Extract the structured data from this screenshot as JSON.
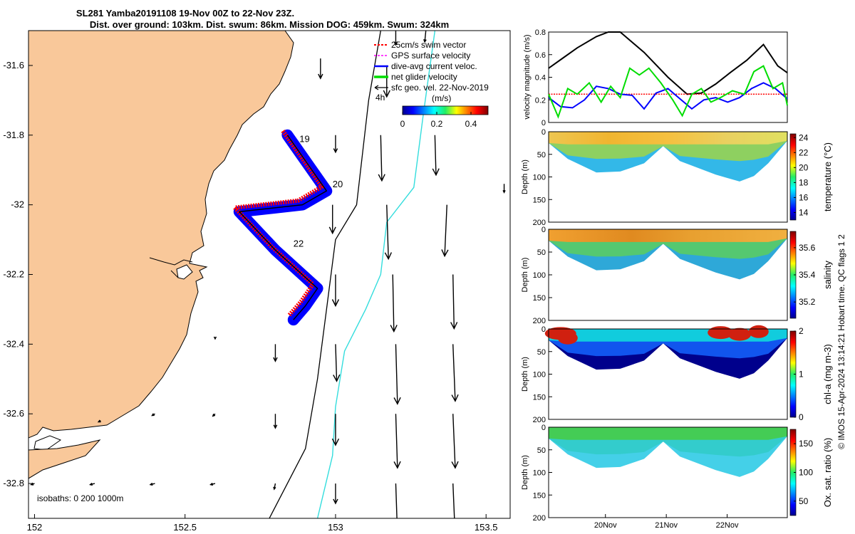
{
  "title": {
    "line1": "SL281 Yamba20191108 19-Nov 00Z to 22-Nov 23Z.",
    "line2": "Dist. over ground: 103km. Dist. swum: 86km. Mission DOG: 459km. Swum: 324km"
  },
  "copyright": "© IMOS 15-Apr-2024 13:14:21 Hobart time. QC flags 1  2",
  "colors": {
    "land": "#f9c89a",
    "swim": "#ff0000",
    "gps": "#ff00ff",
    "dive_avg": "#0000ff",
    "net_glider": "#00dd00",
    "sfc_geo": "#000000",
    "isobath200": "#000000",
    "isobath1000": "#33dddd"
  },
  "chart_data": [
    {
      "type": "map",
      "xlim": [
        151.98,
        153.58
      ],
      "ylim": [
        -32.9,
        -31.5
      ],
      "xticks": [
        "152",
        "152.5",
        "153",
        "153.5"
      ],
      "xtick_values": [
        152,
        152.5,
        153,
        153.5
      ],
      "yticks": [
        "-31.6",
        "-31.8",
        "-32",
        "-32.2",
        "-32.4",
        "-32.6",
        "-32.8"
      ],
      "ytick_values": [
        -31.6,
        -31.8,
        -32.0,
        -32.2,
        -32.4,
        -32.6,
        -32.8
      ],
      "legend": [
        {
          "label": "25cm/s swim vector",
          "color": "#ff0000"
        },
        {
          "label": "GPS surface velocity",
          "color": "#ff00ff"
        },
        {
          "label": "dive-avg current veloc.",
          "color": "#0000ff"
        },
        {
          "label": "net glider velocity",
          "color": "#00dd00"
        },
        {
          "label": "sfc geo. vel. 22-Nov-2019",
          "color": "#000000"
        }
      ],
      "colorbar": {
        "title": "(m/s)",
        "ticks": [
          "0",
          "0.2",
          "0.4"
        ],
        "scale_label": "4h",
        "range": [
          0,
          0.5
        ]
      },
      "isobaths_label": "isobaths: 0   200   1000m",
      "track_labels": [
        {
          "text": "19",
          "lon": 152.88,
          "lat": -31.82
        },
        {
          "text": "20",
          "lon": 152.99,
          "lat": -31.95
        },
        {
          "text": "22",
          "lon": 152.86,
          "lat": -32.12
        }
      ],
      "track": [
        [
          152.84,
          -31.8
        ],
        [
          152.97,
          -31.96
        ],
        [
          152.89,
          -32.0
        ],
        [
          152.68,
          -32.02
        ],
        [
          152.8,
          -32.13
        ],
        [
          152.94,
          -32.24
        ],
        [
          152.9,
          -32.29
        ],
        [
          152.86,
          -32.33
        ]
      ],
      "isobath_200": [
        [
          152.78,
          -32.9
        ],
        [
          152.9,
          -32.7
        ],
        [
          152.94,
          -32.5
        ],
        [
          152.97,
          -32.3
        ],
        [
          153.0,
          -32.1
        ],
        [
          153.07,
          -32.0
        ],
        [
          153.11,
          -31.7
        ],
        [
          153.15,
          -31.5
        ]
      ],
      "isobath_1000": [
        [
          152.94,
          -32.9
        ],
        [
          152.99,
          -32.72
        ],
        [
          153.0,
          -32.58
        ],
        [
          153.03,
          -32.42
        ],
        [
          153.1,
          -32.3
        ],
        [
          153.15,
          -32.2
        ],
        [
          153.17,
          -32.05
        ],
        [
          153.26,
          -31.95
        ],
        [
          153.29,
          -31.75
        ],
        [
          153.33,
          -31.5
        ]
      ],
      "vectors": [
        {
          "lon": 153.2,
          "lat": -31.5,
          "u": 0.0,
          "v": -0.25
        },
        {
          "lon": 153.3,
          "lat": -31.5,
          "u": -0.02,
          "v": -0.2
        },
        {
          "lon": 152.95,
          "lat": -31.58,
          "u": 0.0,
          "v": -0.35
        },
        {
          "lon": 153.17,
          "lat": -31.6,
          "u": 0.0,
          "v": -0.55
        },
        {
          "lon": 153.0,
          "lat": -31.8,
          "u": 0.0,
          "v": -0.3
        },
        {
          "lon": 153.15,
          "lat": -31.8,
          "u": 0.02,
          "v": -0.8
        },
        {
          "lon": 153.33,
          "lat": -31.8,
          "u": 0.02,
          "v": -0.7
        },
        {
          "lon": 153.56,
          "lat": -31.94,
          "u": 0.0,
          "v": -0.15
        },
        {
          "lon": 152.99,
          "lat": -32.0,
          "u": 0.0,
          "v": -0.5
        },
        {
          "lon": 153.17,
          "lat": -32.0,
          "u": 0.03,
          "v": -0.95
        },
        {
          "lon": 153.37,
          "lat": -32.0,
          "u": -0.04,
          "v": -0.9
        },
        {
          "lon": 153.0,
          "lat": -32.2,
          "u": 0.0,
          "v": -0.55
        },
        {
          "lon": 153.19,
          "lat": -32.2,
          "u": 0.02,
          "v": -1.0
        },
        {
          "lon": 153.39,
          "lat": -32.2,
          "u": 0.02,
          "v": -0.95
        },
        {
          "lon": 152.8,
          "lat": -32.4,
          "u": 0.0,
          "v": -0.3
        },
        {
          "lon": 153.0,
          "lat": -32.4,
          "u": 0.02,
          "v": -0.65
        },
        {
          "lon": 153.2,
          "lat": -32.4,
          "u": 0.03,
          "v": -1.05
        },
        {
          "lon": 153.39,
          "lat": -32.4,
          "u": 0.04,
          "v": -1.0
        },
        {
          "lon": 152.8,
          "lat": -32.6,
          "u": 0.0,
          "v": -0.25
        },
        {
          "lon": 153.0,
          "lat": -32.6,
          "u": 0.0,
          "v": -0.55
        },
        {
          "lon": 153.2,
          "lat": -32.6,
          "u": 0.03,
          "v": -0.95
        },
        {
          "lon": 153.39,
          "lat": -32.6,
          "u": 0.04,
          "v": -0.95
        },
        {
          "lon": 152.6,
          "lat": -32.6,
          "u": -0.04,
          "v": -0.04
        },
        {
          "lon": 152.4,
          "lat": -32.6,
          "u": -0.05,
          "v": -0.03
        },
        {
          "lon": 152.22,
          "lat": -32.62,
          "u": -0.04,
          "v": -0.02
        },
        {
          "lon": 152.8,
          "lat": -32.8,
          "u": -0.02,
          "v": -0.1
        },
        {
          "lon": 152.6,
          "lat": -32.8,
          "u": -0.08,
          "v": -0.02
        },
        {
          "lon": 152.4,
          "lat": -32.8,
          "u": -0.08,
          "v": -0.02
        },
        {
          "lon": 152.2,
          "lat": -32.8,
          "u": -0.08,
          "v": -0.02
        },
        {
          "lon": 152.0,
          "lat": -32.8,
          "u": -0.06,
          "v": -0.02
        },
        {
          "lon": 153.0,
          "lat": -32.8,
          "u": 0.0,
          "v": -0.35
        },
        {
          "lon": 153.2,
          "lat": -32.8,
          "u": 0.03,
          "v": -0.9
        },
        {
          "lon": 153.39,
          "lat": -32.8,
          "u": 0.04,
          "v": -0.95
        },
        {
          "lon": 152.6,
          "lat": -32.38,
          "u": 0.0,
          "v": -0.03
        }
      ]
    },
    {
      "type": "line",
      "ylabel": "velocity magnitude (m/s)",
      "ylim": [
        0,
        0.8
      ],
      "yticks": [
        "0",
        "0.2",
        "0.4",
        "0.6",
        "0.8"
      ],
      "series": [
        {
          "name": "sfc geo. vel.",
          "color": "#000000",
          "x": [
            0,
            0.06,
            0.12,
            0.2,
            0.25,
            0.3,
            0.4,
            0.5,
            0.58,
            0.64,
            0.7,
            0.76,
            0.83,
            0.9,
            0.96,
            1.0
          ],
          "values": [
            0.48,
            0.57,
            0.66,
            0.76,
            0.8,
            0.8,
            0.62,
            0.4,
            0.25,
            0.26,
            0.34,
            0.44,
            0.55,
            0.69,
            0.5,
            0.44
          ]
        },
        {
          "name": "swim 25cm/s",
          "color": "#ff0000",
          "x": [
            0,
            1
          ],
          "values": [
            0.25,
            0.25
          ]
        },
        {
          "name": "dive-avg current",
          "color": "#0000ff",
          "x": [
            0,
            0.05,
            0.1,
            0.15,
            0.2,
            0.25,
            0.3,
            0.35,
            0.4,
            0.45,
            0.5,
            0.55,
            0.6,
            0.65,
            0.7,
            0.75,
            0.8,
            0.85,
            0.9,
            0.95,
            1.0
          ],
          "values": [
            0.22,
            0.14,
            0.13,
            0.2,
            0.32,
            0.3,
            0.25,
            0.24,
            0.12,
            0.26,
            0.3,
            0.21,
            0.12,
            0.2,
            0.22,
            0.18,
            0.22,
            0.3,
            0.35,
            0.3,
            0.21
          ]
        },
        {
          "name": "net glider velocity",
          "color": "#00dd00",
          "x": [
            0,
            0.04,
            0.08,
            0.12,
            0.17,
            0.22,
            0.26,
            0.3,
            0.34,
            0.38,
            0.42,
            0.47,
            0.52,
            0.56,
            0.6,
            0.64,
            0.68,
            0.72,
            0.77,
            0.82,
            0.86,
            0.9,
            0.94,
            0.98,
            1.0
          ],
          "values": [
            0.25,
            0.05,
            0.3,
            0.25,
            0.35,
            0.18,
            0.32,
            0.22,
            0.48,
            0.42,
            0.48,
            0.35,
            0.2,
            0.06,
            0.25,
            0.3,
            0.18,
            0.22,
            0.28,
            0.25,
            0.45,
            0.5,
            0.3,
            0.35,
            0.15
          ]
        }
      ]
    },
    {
      "type": "heatmap",
      "ylabel": "Depth (m)",
      "yticks": [
        "0",
        "50",
        "100",
        "150",
        "200"
      ],
      "ylim": [
        0,
        200
      ],
      "cbar_label": "temperature (°C)",
      "cbar_ticks": [
        "14",
        "16",
        "18",
        "20",
        "22",
        "24"
      ],
      "cbar_range": [
        13,
        24.5
      ]
    },
    {
      "type": "heatmap",
      "ylabel": "Depth (m)",
      "yticks": [
        "0",
        "50",
        "100",
        "150",
        "200"
      ],
      "ylim": [
        0,
        200
      ],
      "cbar_label": "salinity",
      "cbar_ticks": [
        "35.2",
        "35.4",
        "35.6"
      ],
      "cbar_range": [
        35.08,
        35.72
      ]
    },
    {
      "type": "heatmap",
      "ylabel": "Depth (m)",
      "yticks": [
        "0",
        "50",
        "100",
        "150",
        "200"
      ],
      "ylim": [
        0,
        200
      ],
      "cbar_label": "chl-a (mg m-3)",
      "cbar_ticks": [
        "0",
        "1",
        "2"
      ],
      "cbar_range": [
        0,
        2
      ]
    },
    {
      "type": "heatmap",
      "ylabel": "Depth (m)",
      "yticks": [
        "0",
        "50",
        "100",
        "150",
        "200"
      ],
      "ylim": [
        0,
        200
      ],
      "cbar_label": "Ox. sat. ratio (%)",
      "cbar_ticks": [
        "50",
        "100",
        "150"
      ],
      "cbar_range": [
        25,
        175
      ],
      "xticks": [
        "20Nov",
        "21Nov",
        "22Nov"
      ]
    }
  ]
}
